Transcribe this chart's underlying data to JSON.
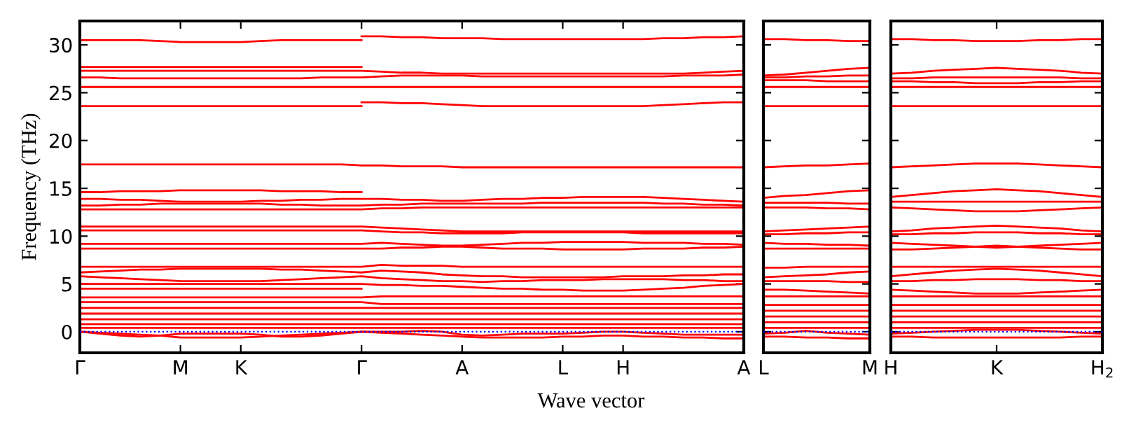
{
  "chart_data": [
    {
      "type": "line",
      "ylabel": "Frequency (THz)",
      "xlabel": "Wave vector",
      "ylim": [
        -2.2,
        32.5
      ],
      "yticks": [
        0,
        5,
        10,
        15,
        20,
        25,
        30
      ],
      "categories": [
        "Γ",
        null,
        null,
        null,
        null,
        "M",
        null,
        null,
        "K",
        null,
        null,
        null,
        null,
        null,
        "Γ",
        null,
        null,
        null,
        null,
        "A",
        null,
        null,
        null,
        null,
        "L",
        null,
        null,
        "H",
        null,
        null,
        null,
        null,
        null,
        "A"
      ],
      "grid": false,
      "legend": false,
      "marker": "none",
      "line_style": "solid",
      "ref_lines": [
        {
          "axis": "y",
          "value": 0,
          "color": "#0000ff",
          "line_style": "dotted"
        }
      ],
      "series": [
        {
          "color": "#ff0000",
          "values": [
            30.5,
            30.5,
            30.5,
            30.5,
            30.4,
            30.3,
            30.3,
            30.3,
            30.3,
            30.4,
            30.5,
            30.5,
            30.5,
            30.5,
            30.5,
            null,
            null,
            null,
            null,
            null,
            null,
            null,
            null,
            null,
            null,
            null,
            null,
            null,
            null,
            null,
            null,
            null,
            null,
            null
          ]
        },
        {
          "color": "#ff0000",
          "values": [
            null,
            null,
            null,
            null,
            null,
            null,
            null,
            null,
            null,
            null,
            null,
            null,
            null,
            null,
            30.9,
            30.9,
            30.8,
            30.8,
            30.7,
            30.7,
            30.7,
            30.6,
            30.6,
            30.6,
            30.6,
            30.6,
            30.6,
            30.6,
            30.6,
            30.7,
            30.7,
            30.8,
            30.8,
            30.9
          ]
        },
        {
          "color": "#ff0000",
          "values": [
            27.7,
            27.7,
            27.7,
            27.7,
            27.7,
            27.7,
            27.7,
            27.7,
            27.7,
            27.7,
            27.7,
            27.7,
            27.7,
            27.7,
            27.7,
            null,
            null,
            null,
            null,
            null,
            null,
            null,
            null,
            null,
            null,
            null,
            null,
            null,
            null,
            null,
            null,
            null,
            null,
            null
          ]
        },
        {
          "color": "#ff0000",
          "values": [
            27.3,
            27.3,
            27.3,
            27.3,
            27.3,
            27.3,
            27.3,
            27.3,
            27.3,
            27.3,
            27.3,
            27.3,
            27.3,
            27.3,
            27.3,
            27.2,
            27.1,
            27.1,
            27.0,
            27.0,
            27.0,
            27.0,
            27.0,
            27.0,
            27.0,
            27.0,
            27.0,
            27.0,
            27.0,
            27.0,
            27.0,
            27.1,
            27.2,
            27.3
          ]
        },
        {
          "color": "#ff0000",
          "values": [
            26.6,
            26.6,
            26.5,
            26.5,
            26.5,
            26.5,
            26.5,
            26.5,
            26.5,
            26.5,
            26.5,
            26.5,
            26.6,
            26.6,
            26.6,
            26.7,
            26.8,
            26.8,
            26.8,
            26.8,
            26.7,
            26.7,
            26.7,
            26.7,
            26.7,
            26.7,
            26.7,
            26.7,
            26.7,
            26.7,
            26.8,
            26.8,
            26.8,
            26.9
          ]
        },
        {
          "color": "#ff0000",
          "values": [
            25.6,
            25.6,
            25.6,
            25.6,
            25.6,
            25.6,
            25.6,
            25.6,
            25.6,
            25.6,
            25.6,
            25.6,
            25.6,
            25.6,
            25.6,
            25.6,
            25.6,
            25.6,
            25.6,
            25.6,
            25.6,
            25.6,
            25.6,
            25.6,
            25.6,
            25.6,
            25.6,
            25.6,
            25.6,
            25.6,
            25.6,
            25.6,
            25.6,
            25.6
          ]
        },
        {
          "color": "#ff0000",
          "values": [
            23.6,
            23.6,
            23.6,
            23.6,
            23.6,
            23.6,
            23.6,
            23.6,
            23.6,
            23.6,
            23.6,
            23.6,
            23.6,
            23.6,
            23.6,
            null,
            null,
            null,
            null,
            null,
            null,
            null,
            null,
            null,
            null,
            null,
            null,
            null,
            null,
            null,
            null,
            null,
            null,
            null
          ]
        },
        {
          "color": "#ff0000",
          "values": [
            null,
            null,
            null,
            null,
            null,
            null,
            null,
            null,
            null,
            null,
            null,
            null,
            null,
            null,
            24.0,
            24.0,
            23.9,
            23.9,
            23.8,
            23.7,
            23.6,
            23.6,
            23.6,
            23.6,
            23.6,
            23.6,
            23.6,
            23.6,
            23.6,
            23.7,
            23.8,
            23.9,
            24.0,
            24.0
          ]
        },
        {
          "color": "#ff0000",
          "values": [
            17.5,
            17.5,
            17.5,
            17.5,
            17.5,
            17.5,
            17.5,
            17.5,
            17.5,
            17.5,
            17.5,
            17.5,
            17.5,
            17.5,
            17.4,
            17.4,
            17.3,
            17.3,
            17.3,
            17.2,
            17.2,
            17.2,
            17.2,
            17.2,
            17.2,
            17.2,
            17.2,
            17.2,
            17.2,
            17.2,
            17.2,
            17.2,
            17.2,
            17.2
          ]
        },
        {
          "color": "#ff0000",
          "values": [
            14.6,
            14.6,
            14.7,
            14.7,
            14.7,
            14.8,
            14.8,
            14.8,
            14.8,
            14.8,
            14.7,
            14.7,
            14.7,
            14.6,
            14.6,
            null,
            null,
            null,
            null,
            null,
            null,
            null,
            null,
            null,
            null,
            null,
            null,
            null,
            null,
            null,
            null,
            null,
            null,
            null
          ]
        },
        {
          "color": "#ff0000",
          "values": [
            13.9,
            13.9,
            13.8,
            13.8,
            13.7,
            13.6,
            13.6,
            13.6,
            13.6,
            13.7,
            13.7,
            13.8,
            13.8,
            13.9,
            13.9,
            13.9,
            13.8,
            13.8,
            13.7,
            13.7,
            13.8,
            13.9,
            13.9,
            14.0,
            14.0,
            14.1,
            14.1,
            14.1,
            14.1,
            14.0,
            13.9,
            13.8,
            13.7,
            13.6
          ]
        },
        {
          "color": "#ff0000",
          "values": [
            13.2,
            13.2,
            13.3,
            13.3,
            13.4,
            13.4,
            13.4,
            13.4,
            13.4,
            13.4,
            13.3,
            13.3,
            13.2,
            13.2,
            13.2,
            13.3,
            13.3,
            13.4,
            13.4,
            13.4,
            13.4,
            13.4,
            13.4,
            13.5,
            13.5,
            13.5,
            13.5,
            13.5,
            13.5,
            13.4,
            13.4,
            13.3,
            13.3,
            13.2
          ]
        },
        {
          "color": "#ff0000",
          "values": [
            12.8,
            12.8,
            12.8,
            12.8,
            12.8,
            12.8,
            12.8,
            12.8,
            12.8,
            12.8,
            12.8,
            12.8,
            12.8,
            12.8,
            12.8,
            12.9,
            12.9,
            13.0,
            13.0,
            13.0,
            13.0,
            13.0,
            13.0,
            13.0,
            13.0,
            13.0,
            13.0,
            13.0,
            13.0,
            13.0,
            13.0,
            13.0,
            13.0,
            13.0
          ]
        },
        {
          "color": "#ff0000",
          "values": [
            11.0,
            11.0,
            11.0,
            11.0,
            11.0,
            11.0,
            11.0,
            11.0,
            11.0,
            11.0,
            11.0,
            11.0,
            11.0,
            11.0,
            11.0,
            10.9,
            10.8,
            10.7,
            10.6,
            10.5,
            10.5,
            10.5,
            10.5,
            10.5,
            10.5,
            10.5,
            10.5,
            10.5,
            10.5,
            10.5,
            10.5,
            10.5,
            10.5,
            10.5
          ]
        },
        {
          "color": "#ff0000",
          "values": [
            10.6,
            10.6,
            10.6,
            10.6,
            10.6,
            10.6,
            10.6,
            10.6,
            10.6,
            10.6,
            10.6,
            10.6,
            10.6,
            10.6,
            10.6,
            10.5,
            10.4,
            10.4,
            10.3,
            10.3,
            10.3,
            10.3,
            10.4,
            10.4,
            10.4,
            10.4,
            10.4,
            10.4,
            10.3,
            10.3,
            10.3,
            10.3,
            10.3,
            10.3
          ]
        },
        {
          "color": "#ff0000",
          "values": [
            9.2,
            9.2,
            9.2,
            9.2,
            9.2,
            9.2,
            9.2,
            9.2,
            9.2,
            9.2,
            9.2,
            9.2,
            9.2,
            9.2,
            9.2,
            9.3,
            9.2,
            9.1,
            9.0,
            9.0,
            9.1,
            9.2,
            9.3,
            9.3,
            9.4,
            9.4,
            9.4,
            9.4,
            9.3,
            9.3,
            9.3,
            9.2,
            9.2,
            9.1
          ]
        },
        {
          "color": "#ff0000",
          "values": [
            8.7,
            8.7,
            8.7,
            8.7,
            8.7,
            8.7,
            8.7,
            8.7,
            8.7,
            8.7,
            8.7,
            8.7,
            8.7,
            8.7,
            8.7,
            8.7,
            8.8,
            8.8,
            8.9,
            8.9,
            8.8,
            8.7,
            8.7,
            8.7,
            8.6,
            8.6,
            8.6,
            8.6,
            8.7,
            8.7,
            8.7,
            8.8,
            8.8,
            8.9
          ]
        },
        {
          "color": "#ff0000",
          "values": [
            6.8,
            6.8,
            6.8,
            6.8,
            6.8,
            6.8,
            6.8,
            6.8,
            6.8,
            6.8,
            6.8,
            6.8,
            6.8,
            6.8,
            6.8,
            7.0,
            6.9,
            6.9,
            6.9,
            6.8,
            6.8,
            6.8,
            6.8,
            6.8,
            6.8,
            6.8,
            6.8,
            6.8,
            6.8,
            6.8,
            6.8,
            6.8,
            6.8,
            6.8
          ]
        },
        {
          "color": "#ff0000",
          "values": [
            6.2,
            6.3,
            6.4,
            6.5,
            6.5,
            6.6,
            6.6,
            6.6,
            6.6,
            6.6,
            6.5,
            6.5,
            6.4,
            6.3,
            6.2,
            6.4,
            6.3,
            6.2,
            6.0,
            5.9,
            5.8,
            5.8,
            5.7,
            5.7,
            5.7,
            5.7,
            5.7,
            5.8,
            5.8,
            5.8,
            5.9,
            5.9,
            6.0,
            6.0
          ]
        },
        {
          "color": "#ff0000",
          "values": [
            5.8,
            5.7,
            5.6,
            5.5,
            5.4,
            5.3,
            5.3,
            5.3,
            5.3,
            5.3,
            5.4,
            5.5,
            5.6,
            5.7,
            5.8,
            5.6,
            5.5,
            5.4,
            5.3,
            5.3,
            5.2,
            5.3,
            5.3,
            5.4,
            5.4,
            5.4,
            5.5,
            5.5,
            5.5,
            5.5,
            5.4,
            5.4,
            5.3,
            5.3
          ]
        },
        {
          "color": "#ff0000",
          "values": [
            5.0,
            5.0,
            5.0,
            5.0,
            5.0,
            5.0,
            5.0,
            5.0,
            5.0,
            5.0,
            5.0,
            5.0,
            5.0,
            5.0,
            5.0,
            4.9,
            4.9,
            4.8,
            4.8,
            4.7,
            4.6,
            4.5,
            4.5,
            4.4,
            4.4,
            4.3,
            4.3,
            4.3,
            4.4,
            4.5,
            4.6,
            4.8,
            4.9,
            5.0
          ]
        },
        {
          "color": "#ff0000",
          "values": [
            4.5,
            4.5,
            4.5,
            4.5,
            4.5,
            4.5,
            4.5,
            4.5,
            4.5,
            4.5,
            4.5,
            4.5,
            4.5,
            4.5,
            4.5,
            null,
            null,
            null,
            null,
            null,
            null,
            null,
            null,
            null,
            null,
            null,
            null,
            null,
            null,
            null,
            null,
            null,
            null,
            null
          ]
        },
        {
          "color": "#ff0000",
          "values": [
            3.6,
            3.6,
            3.6,
            3.6,
            3.6,
            3.6,
            3.6,
            3.6,
            3.6,
            3.6,
            3.6,
            3.6,
            3.6,
            3.6,
            3.6,
            3.7,
            3.7,
            3.7,
            3.7,
            3.7,
            3.7,
            3.7,
            3.7,
            3.7,
            3.7,
            3.7,
            3.7,
            3.7,
            3.7,
            3.7,
            3.7,
            3.7,
            3.7,
            3.7
          ]
        },
        {
          "color": "#ff0000",
          "values": [
            3.1,
            3.1,
            3.1,
            3.1,
            3.1,
            3.1,
            3.1,
            3.1,
            3.1,
            3.1,
            3.1,
            3.1,
            3.1,
            3.1,
            3.1,
            2.9,
            2.9,
            2.9,
            2.9,
            2.9,
            2.9,
            2.9,
            2.9,
            2.9,
            2.9,
            2.9,
            2.9,
            2.9,
            2.9,
            2.9,
            2.9,
            2.9,
            2.9,
            2.9
          ]
        },
        {
          "color": "#ff0000",
          "values": [
            2.5,
            2.5,
            2.5,
            2.5,
            2.5,
            2.5,
            2.5,
            2.5,
            2.5,
            2.5,
            2.5,
            2.5,
            2.5,
            2.5,
            2.5,
            2.5,
            2.5,
            2.5,
            2.5,
            2.5,
            2.5,
            2.5,
            2.5,
            2.5,
            2.5,
            2.5,
            2.5,
            2.5,
            2.5,
            2.5,
            2.5,
            2.5,
            2.5,
            2.5
          ]
        },
        {
          "color": "#ff0000",
          "values": [
            1.9,
            1.9,
            1.9,
            1.9,
            1.9,
            1.9,
            1.9,
            1.9,
            1.9,
            1.9,
            1.9,
            1.9,
            1.9,
            1.9,
            1.9,
            1.9,
            1.9,
            1.9,
            1.9,
            1.9,
            1.9,
            1.9,
            1.9,
            1.9,
            1.9,
            1.9,
            1.9,
            1.9,
            1.9,
            1.9,
            1.9,
            1.9,
            1.9,
            1.9
          ]
        },
        {
          "color": "#ff0000",
          "values": [
            1.3,
            1.3,
            1.3,
            1.3,
            1.3,
            1.3,
            1.3,
            1.3,
            1.3,
            1.3,
            1.3,
            1.3,
            1.3,
            1.3,
            1.3,
            1.3,
            1.3,
            1.3,
            1.3,
            1.3,
            1.3,
            1.3,
            1.3,
            1.3,
            1.3,
            1.3,
            1.3,
            1.3,
            1.3,
            1.3,
            1.3,
            1.3,
            1.3,
            1.3
          ]
        },
        {
          "color": "#ff0000",
          "values": [
            0.8,
            0.8,
            0.8,
            0.8,
            0.8,
            0.8,
            0.8,
            0.8,
            0.8,
            0.8,
            0.8,
            0.8,
            0.8,
            0.8,
            0.8,
            0.8,
            0.8,
            0.8,
            0.8,
            0.8,
            0.8,
            0.8,
            0.8,
            0.8,
            0.8,
            0.8,
            0.8,
            0.8,
            0.8,
            0.8,
            0.8,
            0.8,
            0.8,
            0.8
          ]
        },
        {
          "color": "#ff0000",
          "values": [
            0.4,
            0.4,
            0.4,
            0.4,
            0.4,
            0.4,
            0.4,
            0.4,
            0.4,
            0.4,
            0.4,
            0.4,
            0.4,
            0.4,
            0.4,
            0.4,
            0.4,
            0.4,
            0.4,
            0.4,
            0.4,
            0.4,
            0.4,
            0.4,
            0.4,
            0.4,
            0.4,
            0.4,
            0.4,
            0.4,
            0.4,
            0.4,
            0.4,
            0.4
          ]
        },
        {
          "color": "#ff0000",
          "values": [
            0,
            -0.2,
            -0.4,
            -0.5,
            -0.4,
            -0.2,
            -0.2,
            -0.2,
            -0.2,
            -0.3,
            -0.5,
            -0.5,
            -0.4,
            -0.2,
            0,
            0,
            0,
            0.1,
            0,
            -0.3,
            -0.4,
            -0.3,
            -0.2,
            -0.2,
            -0.2,
            -0.1,
            0,
            0,
            -0.1,
            -0.2,
            -0.3,
            -0.3,
            -0.3,
            -0.3
          ]
        },
        {
          "color": "#ff0000",
          "values": [
            0,
            -0.1,
            -0.2,
            -0.3,
            -0.4,
            -0.6,
            -0.6,
            -0.6,
            -0.6,
            -0.5,
            -0.4,
            -0.3,
            -0.2,
            -0.1,
            0,
            -0.1,
            -0.2,
            -0.3,
            -0.4,
            -0.5,
            -0.6,
            -0.6,
            -0.6,
            -0.6,
            -0.5,
            -0.5,
            -0.4,
            -0.4,
            -0.5,
            -0.5,
            -0.6,
            -0.6,
            -0.7,
            -0.7
          ]
        }
      ]
    },
    {
      "type": "line",
      "ylim": [
        -2.2,
        32.5
      ],
      "yticks": [
        0,
        5,
        10,
        15,
        20,
        25,
        30
      ],
      "tick_labels": "x",
      "categories": [
        "L",
        null,
        null,
        null,
        null,
        "M"
      ],
      "grid": false,
      "legend": false,
      "marker": "none",
      "line_style": "solid",
      "ref_lines": [
        {
          "axis": "y",
          "value": 0,
          "color": "#0000ff",
          "line_style": "dotted"
        }
      ],
      "series": [
        {
          "color": "#ff0000",
          "values": [
            30.6,
            30.6,
            30.5,
            30.5,
            30.4,
            30.4
          ]
        },
        {
          "color": "#ff0000",
          "values": [
            26.8,
            26.9,
            27.1,
            27.3,
            27.5,
            27.6
          ]
        },
        {
          "color": "#ff0000",
          "values": [
            26.6,
            26.6,
            26.7,
            26.7,
            26.8,
            26.8
          ]
        },
        {
          "color": "#ff0000",
          "values": [
            26.3,
            26.3,
            26.3,
            26.2,
            26.2,
            26.2
          ]
        },
        {
          "color": "#ff0000",
          "values": [
            25.6,
            25.6,
            25.6,
            25.6,
            25.6,
            25.6
          ]
        },
        {
          "color": "#ff0000",
          "values": [
            23.6,
            23.6,
            23.6,
            23.6,
            23.6,
            23.6
          ]
        },
        {
          "color": "#ff0000",
          "values": [
            17.2,
            17.3,
            17.4,
            17.4,
            17.5,
            17.6
          ]
        },
        {
          "color": "#ff0000",
          "values": [
            14.0,
            14.2,
            14.3,
            14.5,
            14.7,
            14.8
          ]
        },
        {
          "color": "#ff0000",
          "values": [
            13.5,
            13.5,
            13.5,
            13.5,
            13.4,
            13.4
          ]
        },
        {
          "color": "#ff0000",
          "values": [
            13.0,
            13.0,
            13.0,
            12.9,
            12.9,
            12.8
          ]
        },
        {
          "color": "#ff0000",
          "values": [
            10.5,
            10.6,
            10.7,
            10.8,
            10.9,
            11.0
          ]
        },
        {
          "color": "#ff0000",
          "values": [
            10.2,
            10.2,
            10.3,
            10.3,
            10.4,
            10.4
          ]
        },
        {
          "color": "#ff0000",
          "values": [
            9.3,
            9.2,
            9.2,
            9.1,
            9.1,
            9.0
          ]
        },
        {
          "color": "#ff0000",
          "values": [
            8.7,
            8.7,
            8.7,
            8.7,
            8.7,
            8.7
          ]
        },
        {
          "color": "#ff0000",
          "values": [
            6.7,
            6.7,
            6.8,
            6.8,
            6.8,
            6.8
          ]
        },
        {
          "color": "#ff0000",
          "values": [
            5.7,
            5.8,
            5.9,
            6.0,
            6.2,
            6.3
          ]
        },
        {
          "color": "#ff0000",
          "values": [
            5.3,
            5.3,
            5.3,
            5.3,
            5.2,
            5.2
          ]
        },
        {
          "color": "#ff0000",
          "values": [
            4.4,
            4.4,
            4.3,
            4.2,
            4.1,
            4.0
          ]
        },
        {
          "color": "#ff0000",
          "values": [
            3.7,
            3.7,
            3.7,
            3.7,
            3.7,
            3.7
          ]
        },
        {
          "color": "#ff0000",
          "values": [
            2.8,
            2.8,
            2.8,
            2.8,
            2.8,
            2.8
          ]
        },
        {
          "color": "#ff0000",
          "values": [
            2.2,
            2.2,
            2.2,
            2.2,
            2.2,
            2.2
          ]
        },
        {
          "color": "#ff0000",
          "values": [
            1.6,
            1.6,
            1.6,
            1.6,
            1.6,
            1.6
          ]
        },
        {
          "color": "#ff0000",
          "values": [
            1.0,
            1.0,
            1.0,
            1.0,
            1.0,
            1.0
          ]
        },
        {
          "color": "#ff0000",
          "values": [
            0.4,
            0.4,
            0.4,
            0.4,
            0.4,
            0.4
          ]
        },
        {
          "color": "#ff0000",
          "values": [
            -0.2,
            -0.1,
            0.1,
            -0.1,
            -0.2,
            -0.3
          ]
        },
        {
          "color": "#ff0000",
          "values": [
            -0.5,
            -0.5,
            -0.6,
            -0.6,
            -0.7,
            -0.7
          ]
        }
      ]
    },
    {
      "type": "line",
      "ylim": [
        -2.2,
        32.5
      ],
      "yticks": [
        0,
        5,
        10,
        15,
        20,
        25,
        30
      ],
      "tick_labels": "x",
      "categories": [
        "H",
        null,
        null,
        null,
        null,
        "K",
        null,
        null,
        null,
        null,
        "H$_{2}$"
      ],
      "grid": false,
      "legend": false,
      "marker": "none",
      "line_style": "solid",
      "ref_lines": [
        {
          "axis": "y",
          "value": 0,
          "color": "#0000ff",
          "line_style": "dotted"
        }
      ],
      "series": [
        {
          "color": "#ff0000",
          "values": [
            30.6,
            30.6,
            30.5,
            30.5,
            30.4,
            30.4,
            30.4,
            30.5,
            30.5,
            30.6,
            30.6
          ]
        },
        {
          "color": "#ff0000",
          "values": [
            27.0,
            27.1,
            27.3,
            27.4,
            27.5,
            27.6,
            27.5,
            27.4,
            27.3,
            27.1,
            27.0
          ]
        },
        {
          "color": "#ff0000",
          "values": [
            26.5,
            26.5,
            26.6,
            26.6,
            26.6,
            26.6,
            26.6,
            26.6,
            26.6,
            26.5,
            26.5
          ]
        },
        {
          "color": "#ff0000",
          "values": [
            26.2,
            26.2,
            26.1,
            26.1,
            26.0,
            26.0,
            26.0,
            26.1,
            26.1,
            26.2,
            26.2
          ]
        },
        {
          "color": "#ff0000",
          "values": [
            25.6,
            25.6,
            25.6,
            25.6,
            25.6,
            25.6,
            25.6,
            25.6,
            25.6,
            25.6,
            25.6
          ]
        },
        {
          "color": "#ff0000",
          "values": [
            23.6,
            23.6,
            23.6,
            23.6,
            23.6,
            23.6,
            23.6,
            23.6,
            23.6,
            23.6,
            23.6
          ]
        },
        {
          "color": "#ff0000",
          "values": [
            17.2,
            17.3,
            17.4,
            17.5,
            17.6,
            17.6,
            17.6,
            17.5,
            17.4,
            17.3,
            17.2
          ]
        },
        {
          "color": "#ff0000",
          "values": [
            14.1,
            14.3,
            14.5,
            14.7,
            14.8,
            14.9,
            14.8,
            14.7,
            14.5,
            14.3,
            14.1
          ]
        },
        {
          "color": "#ff0000",
          "values": [
            13.6,
            13.6,
            13.6,
            13.6,
            13.6,
            13.6,
            13.6,
            13.6,
            13.6,
            13.6,
            13.6
          ]
        },
        {
          "color": "#ff0000",
          "values": [
            13.0,
            12.9,
            12.8,
            12.7,
            12.6,
            12.6,
            12.6,
            12.7,
            12.8,
            12.9,
            13.0
          ]
        },
        {
          "color": "#ff0000",
          "values": [
            10.5,
            10.6,
            10.8,
            10.9,
            11.0,
            11.1,
            11.0,
            10.9,
            10.8,
            10.6,
            10.5
          ]
        },
        {
          "color": "#ff0000",
          "values": [
            10.2,
            10.2,
            10.3,
            10.3,
            10.4,
            10.4,
            10.4,
            10.3,
            10.3,
            10.2,
            10.2
          ]
        },
        {
          "color": "#ff0000",
          "values": [
            9.3,
            9.2,
            9.1,
            9.0,
            8.9,
            8.8,
            8.9,
            9.0,
            9.1,
            9.2,
            9.3
          ]
        },
        {
          "color": "#ff0000",
          "values": [
            8.6,
            8.6,
            8.7,
            8.8,
            8.9,
            9.0,
            8.9,
            8.8,
            8.7,
            8.6,
            8.6
          ]
        },
        {
          "color": "#ff0000",
          "values": [
            6.8,
            6.8,
            6.8,
            6.8,
            6.8,
            6.8,
            6.8,
            6.8,
            6.8,
            6.8,
            6.8
          ]
        },
        {
          "color": "#ff0000",
          "values": [
            5.8,
            6.0,
            6.2,
            6.4,
            6.5,
            6.6,
            6.5,
            6.4,
            6.2,
            6.0,
            5.8
          ]
        },
        {
          "color": "#ff0000",
          "values": [
            5.3,
            5.3,
            5.4,
            5.4,
            5.5,
            5.5,
            5.5,
            5.4,
            5.4,
            5.3,
            5.3
          ]
        },
        {
          "color": "#ff0000",
          "values": [
            4.4,
            4.3,
            4.2,
            4.1,
            4.0,
            4.0,
            4.0,
            4.1,
            4.2,
            4.3,
            4.4
          ]
        },
        {
          "color": "#ff0000",
          "values": [
            3.7,
            3.7,
            3.7,
            3.7,
            3.7,
            3.7,
            3.7,
            3.7,
            3.7,
            3.7,
            3.7
          ]
        },
        {
          "color": "#ff0000",
          "values": [
            2.8,
            2.8,
            2.8,
            2.8,
            2.8,
            2.8,
            2.8,
            2.8,
            2.8,
            2.8,
            2.8
          ]
        },
        {
          "color": "#ff0000",
          "values": [
            2.2,
            2.2,
            2.2,
            2.2,
            2.2,
            2.2,
            2.2,
            2.2,
            2.2,
            2.2,
            2.2
          ]
        },
        {
          "color": "#ff0000",
          "values": [
            1.6,
            1.6,
            1.6,
            1.6,
            1.6,
            1.6,
            1.6,
            1.6,
            1.6,
            1.6,
            1.6
          ]
        },
        {
          "color": "#ff0000",
          "values": [
            1.0,
            1.0,
            1.0,
            1.0,
            1.0,
            1.0,
            1.0,
            1.0,
            1.0,
            1.0,
            1.0
          ]
        },
        {
          "color": "#ff0000",
          "values": [
            0.4,
            0.4,
            0.4,
            0.4,
            0.4,
            0.4,
            0.4,
            0.4,
            0.4,
            0.4,
            0.4
          ]
        },
        {
          "color": "#ff0000",
          "values": [
            -0.2,
            -0.1,
            0,
            0.1,
            0.2,
            0.2,
            0.2,
            0.1,
            0,
            -0.1,
            -0.2
          ]
        },
        {
          "color": "#ff0000",
          "values": [
            -0.5,
            -0.5,
            -0.6,
            -0.6,
            -0.6,
            -0.6,
            -0.6,
            -0.6,
            -0.6,
            -0.5,
            -0.5
          ]
        }
      ]
    }
  ]
}
